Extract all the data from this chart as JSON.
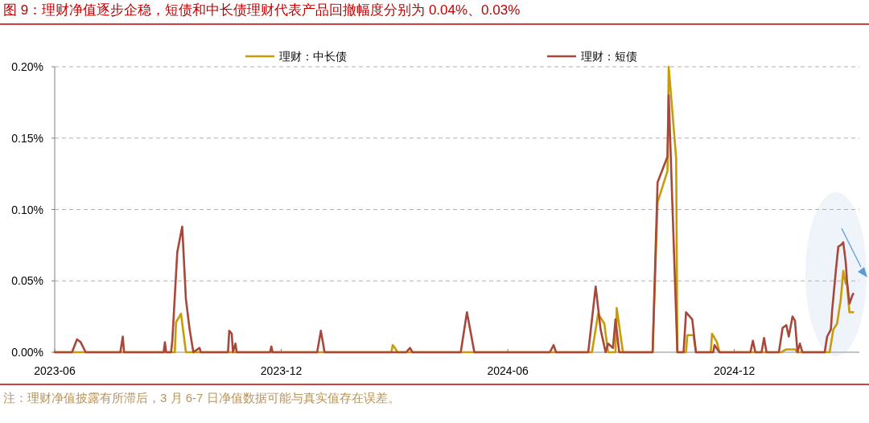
{
  "chart_data": {
    "type": "line",
    "title": "图 9：理财净值逐步企稳，短债和中长债理财代表产品回撤幅度分别为 0.04%、0.03%",
    "xlim": [
      "2023-06-01",
      "2025-03-12"
    ],
    "xticks": [
      {
        "value": "2023-06-01",
        "label": "2023-06"
      },
      {
        "value": "2023-12-01",
        "label": "2023-12"
      },
      {
        "value": "2024-06-01",
        "label": "2024-06"
      },
      {
        "value": "2024-12-01",
        "label": "2024-12"
      }
    ],
    "ylim": [
      0,
      0.2
    ],
    "yticks": [
      {
        "value": 0,
        "label": "0.00%"
      },
      {
        "value": 0.05,
        "label": "0.05%"
      },
      {
        "value": 0.1,
        "label": "0.10%"
      },
      {
        "value": 0.15,
        "label": "0.15%"
      },
      {
        "value": 0.2,
        "label": "0.20%"
      }
    ],
    "grid": "y",
    "legend": "top",
    "series": [
      {
        "name": "理财：中长债",
        "color": "#c89b0a",
        "x": [
          "2023-06-01",
          "2023-09-06",
          "2023-09-07",
          "2023-09-11",
          "2023-09-15",
          "2024-02-28",
          "2024-02-29",
          "2024-03-01",
          "2024-03-04",
          "2024-08-08",
          "2024-08-13",
          "2024-08-18",
          "2024-08-21",
          "2024-08-27",
          "2024-08-28",
          "2024-09-02",
          "2024-09-26",
          "2024-09-30",
          "2024-10-08",
          "2024-10-09",
          "2024-10-15",
          "2024-10-16",
          "2024-10-23",
          "2024-10-24",
          "2024-10-29",
          "2024-10-31",
          "2024-11-12",
          "2024-11-13",
          "2024-11-17",
          "2024-11-19",
          "2025-01-08",
          "2025-01-12",
          "2025-01-19",
          "2025-01-21",
          "2025-02-16",
          "2025-02-19",
          "2025-02-22",
          "2025-02-25",
          "2025-02-27",
          "2025-03-01",
          "2025-03-02",
          "2025-03-04",
          "2025-03-07"
        ],
        "values": [
          0,
          0,
          0.021,
          0.027,
          0,
          0,
          0.005,
          0.004,
          0,
          0,
          0.027,
          0.02,
          0,
          0,
          0.031,
          0,
          0,
          0.105,
          0.127,
          0.2,
          0.136,
          0,
          0,
          0.012,
          0.012,
          0,
          0,
          0.013,
          0.007,
          0,
          0,
          0.002,
          0.002,
          0,
          0,
          0.016,
          0.02,
          0.037,
          0.057,
          0.048,
          0.048,
          0.028,
          0.028
        ]
      },
      {
        "name": "理财：短债",
        "color": "#a8473a",
        "x": [
          "2023-06-01",
          "2023-06-15",
          "2023-06-19",
          "2023-06-22",
          "2023-06-26",
          "2023-07-24",
          "2023-07-26",
          "2023-07-27",
          "2023-08-28",
          "2023-08-29",
          "2023-08-30",
          "2023-09-03",
          "2023-09-04",
          "2023-09-08",
          "2023-09-12",
          "2023-09-15",
          "2023-09-18",
          "2023-09-21",
          "2023-09-26",
          "2023-09-27",
          "2023-10-19",
          "2023-10-20",
          "2023-10-22",
          "2023-10-23",
          "2023-10-25",
          "2023-10-26",
          "2023-11-22",
          "2023-11-23",
          "2023-11-24",
          "2023-12-30",
          "2024-01-02",
          "2024-01-05",
          "2024-03-11",
          "2024-03-14",
          "2024-03-16",
          "2024-04-24",
          "2024-04-29",
          "2024-05-05",
          "2024-07-05",
          "2024-07-08",
          "2024-07-10",
          "2024-08-05",
          "2024-08-11",
          "2024-08-15",
          "2024-08-19",
          "2024-08-21",
          "2024-08-25",
          "2024-08-27",
          "2024-08-30",
          "2024-09-26",
          "2024-09-30",
          "2024-10-08",
          "2024-10-09",
          "2024-10-16",
          "2024-10-21",
          "2024-10-23",
          "2024-10-28",
          "2024-10-31",
          "2024-11-14",
          "2024-11-15",
          "2024-11-19",
          "2024-12-14",
          "2024-12-16",
          "2024-12-18",
          "2024-12-23",
          "2024-12-25",
          "2024-12-27",
          "2025-01-06",
          "2025-01-09",
          "2025-01-12",
          "2025-01-14",
          "2025-01-17",
          "2025-01-19",
          "2025-01-21",
          "2025-01-23",
          "2025-01-25",
          "2025-02-12",
          "2025-02-14",
          "2025-02-17",
          "2025-02-18",
          "2025-02-21",
          "2025-02-23",
          "2025-02-25",
          "2025-02-27",
          "2025-03-01",
          "2025-03-02",
          "2025-03-04",
          "2025-03-06",
          "2025-03-07"
        ],
        "values": [
          0,
          0,
          0.009,
          0.007,
          0,
          0,
          0.011,
          0,
          0,
          0.007,
          0,
          0,
          0.008,
          0.07,
          0.088,
          0.037,
          0.016,
          0,
          0.003,
          0,
          0,
          0.015,
          0.013,
          0,
          0.006,
          0,
          0,
          0.004,
          0,
          0,
          0.015,
          0,
          0,
          0.003,
          0,
          0,
          0.028,
          0,
          0,
          0.005,
          0,
          0,
          0.046,
          0.016,
          0,
          0.006,
          0.003,
          0.023,
          0,
          0,
          0.119,
          0.137,
          0.18,
          0,
          0,
          0.028,
          0.023,
          0,
          0,
          0.005,
          0,
          0,
          0.008,
          0,
          0,
          0.01,
          0,
          0,
          0.017,
          0.019,
          0.011,
          0.025,
          0.022,
          0,
          0.006,
          0,
          0,
          0.011,
          0.016,
          0.029,
          0.057,
          0.074,
          0.075,
          0.077,
          0.063,
          0.05,
          0.034,
          0.039,
          0.041
        ]
      }
    ],
    "annotations": [
      "注：理财净值披露有所滞后，3 月 6-7 日净值数据可能与真实值存在误差。"
    ]
  }
}
